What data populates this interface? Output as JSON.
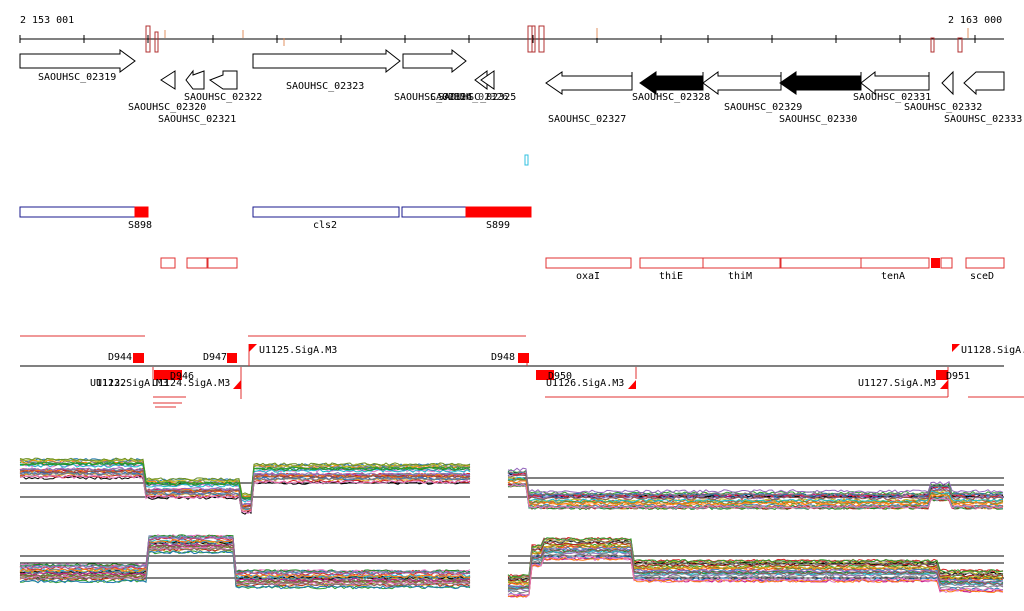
{
  "ruler": {
    "start_label": "2 153 001",
    "end_label": "2 163 000"
  },
  "genes": [
    {
      "label": "SAOUHSC_02319",
      "filled": false
    },
    {
      "label": "SAOUHSC_02320",
      "filled": false
    },
    {
      "label": "SAOUHSC_02321",
      "filled": false
    },
    {
      "label": "SAOUHSC_02322",
      "filled": false
    },
    {
      "label": "SAOUHSC_02323",
      "filled": false
    },
    {
      "label": "SAOUHSC_02324",
      "filled": false
    },
    {
      "label": "SAOUHSC_02325",
      "filled": false
    },
    {
      "label": "SAOUHSC_02326",
      "filled": false
    },
    {
      "label": "SAOUHSC_02327",
      "filled": false
    },
    {
      "label": "SAOUHSC_02328",
      "filled": true
    },
    {
      "label": "SAOUHSC_02329",
      "filled": false
    },
    {
      "label": "SAOUHSC_02330",
      "filled": true
    },
    {
      "label": "SAOUHSC_02331",
      "filled": false
    },
    {
      "label": "SAOUHSC_02332",
      "filled": false
    },
    {
      "label": "SAOUHSC_02333",
      "filled": false
    }
  ],
  "operons": [
    {
      "label": "S898"
    },
    {
      "label": "cls2"
    },
    {
      "label": "S899"
    }
  ],
  "gene_names": [
    {
      "label": "oxaI"
    },
    {
      "label": "thiE"
    },
    {
      "label": "thiM"
    },
    {
      "label": "tenA"
    },
    {
      "label": "sceD"
    }
  ],
  "features": [
    {
      "label": "D944"
    },
    {
      "label": "D947"
    },
    {
      "label": "U1125.SigA.M3"
    },
    {
      "label": "D948"
    },
    {
      "label": "U1128.SigA."
    },
    {
      "label": "U1123.SigA.M3"
    },
    {
      "label": "U1122"
    },
    {
      "label": "D946"
    },
    {
      "label": "U1124.SigA.M3"
    },
    {
      "label": "D950"
    },
    {
      "label": "U1126.SigA.M3"
    },
    {
      "label": "U1127.SigA.M3"
    },
    {
      "label": "D951"
    }
  ]
}
